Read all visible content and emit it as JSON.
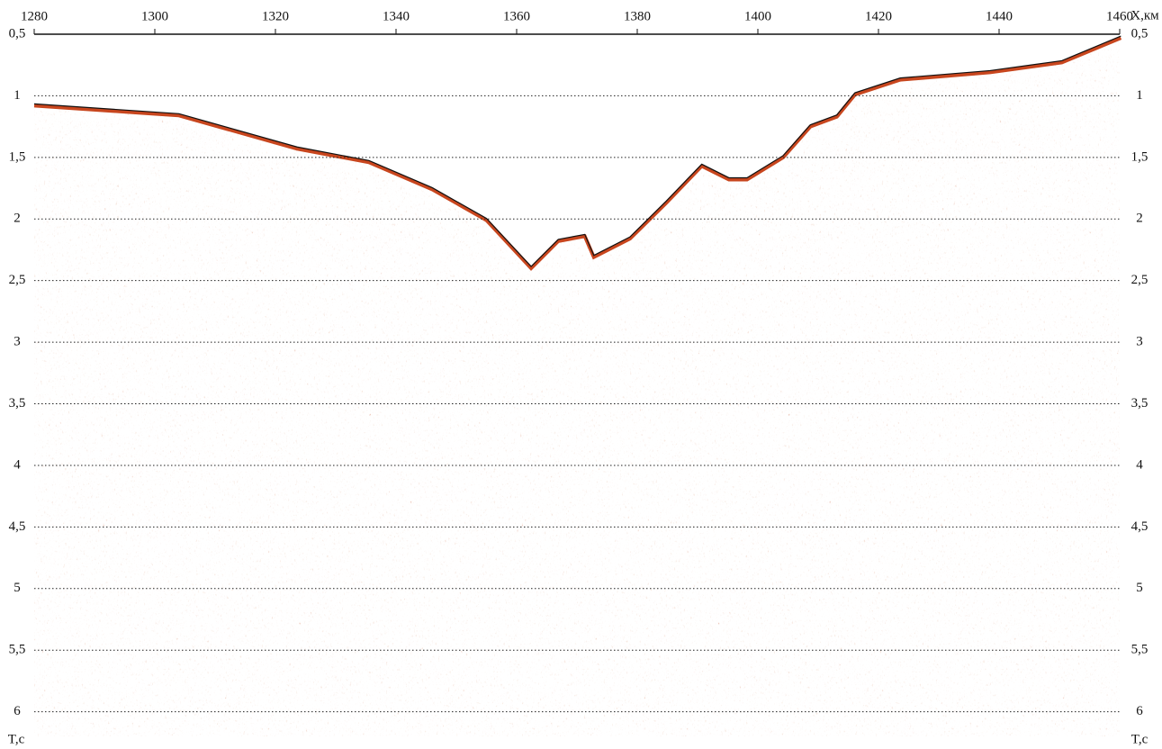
{
  "chart_data": {
    "type": "seismic",
    "x_label": "X,км",
    "y_label": "T,c",
    "xlim": [
      1280,
      1460
    ],
    "xticks": [
      1280,
      1300,
      1320,
      1340,
      1360,
      1380,
      1400,
      1420,
      1440,
      1460
    ],
    "ylim": [
      0.5,
      6.2
    ],
    "yticks": [
      {
        "value": 0.5,
        "label": "0,5"
      },
      1,
      {
        "value": 1.5,
        "label": "1,5"
      },
      2,
      {
        "value": 2.5,
        "label": "2,5"
      },
      3,
      {
        "value": 3.5,
        "label": "3,5"
      },
      4,
      {
        "value": 4.5,
        "label": "4,5"
      },
      5,
      {
        "value": 5.5,
        "label": "5,5"
      },
      6
    ],
    "grid": true,
    "color": "#c8461e",
    "x": [
      1280,
      1304,
      1323.6,
      1335.5,
      1346,
      1355,
      1362.4,
      1366.9,
      1371.3,
      1372.8,
      1378.8,
      1384.8,
      1390.7,
      1395.2,
      1398.2,
      1404.2,
      1408.7,
      1413.1,
      1416.1,
      1423.6,
      1438.5,
      1450.4,
      1460.2
    ],
    "values": [
      1.08,
      1.16,
      1.43,
      1.54,
      1.76,
      2.01,
      2.4,
      2.18,
      2.14,
      2.31,
      2.16,
      1.87,
      1.57,
      1.68,
      1.68,
      1.5,
      1.25,
      1.17,
      0.99,
      0.87,
      0.81,
      0.73,
      0.53
    ]
  }
}
